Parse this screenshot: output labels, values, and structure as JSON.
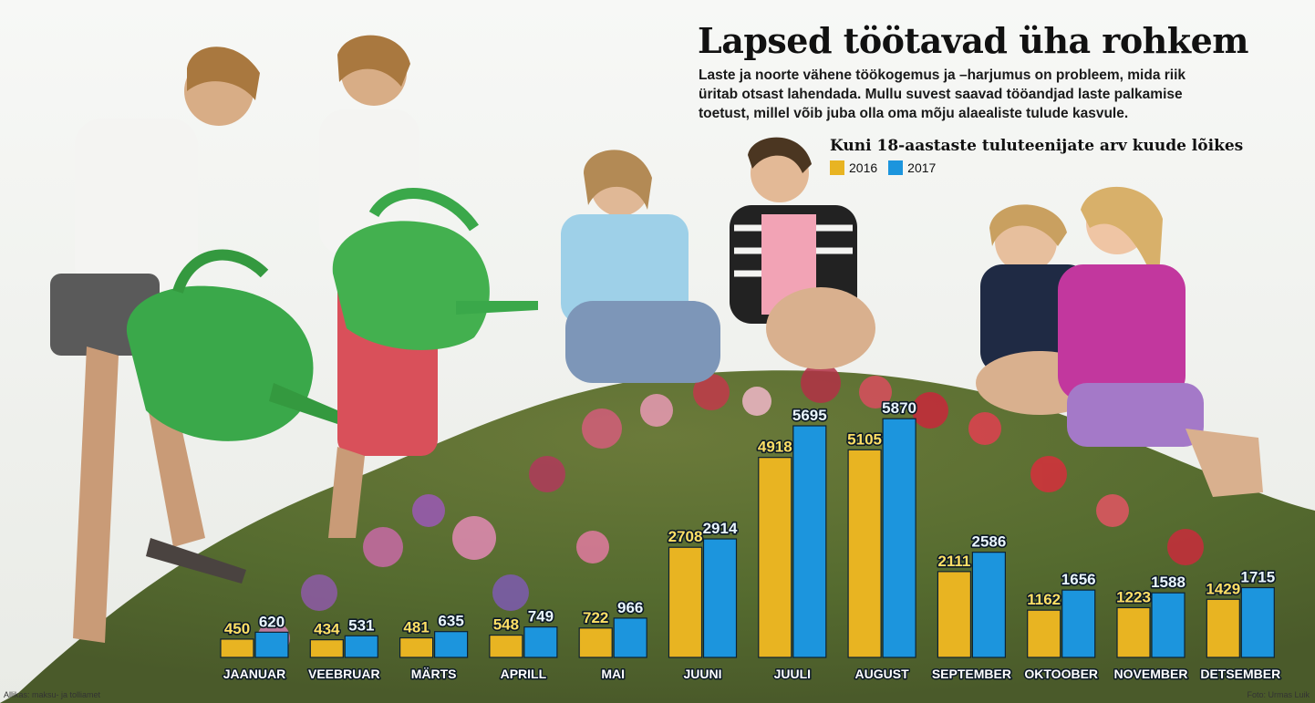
{
  "title": "Lapsed töötavad üha rohkem",
  "intro": "Laste ja noorte vähene töökogemus ja –harjumus on probleem, mida riik üritab otsast lahendada. Mullu suvest saavad tööandjad laste palkamise toetust, millel võib juba olla oma mõju alaealiste tulude kasvule.",
  "source": "Allikas: maksu- ja tolliamet",
  "photo_credit": "Foto: Urmas Luik",
  "colors": {
    "2016": "#e8b422",
    "2017": "#1c95dd"
  },
  "chart_data": {
    "type": "bar",
    "title": "Kuni 18-aastaste tuluteenijate arv  kuude lõikes",
    "legend_placement": "top-left",
    "grid": false,
    "ylim": [
      0,
      6000
    ],
    "categories": [
      "JAANUAR",
      "VEEBRUAR",
      "MÄRTS",
      "APRILL",
      "MAI",
      "JUUNI",
      "JUULI",
      "AUGUST",
      "SEPTEMBER",
      "OKTOOBER",
      "NOVEMBER",
      "DETSEMBER"
    ],
    "series": [
      {
        "name": "2016",
        "values": [
          450,
          434,
          481,
          548,
          722,
          2708,
          4918,
          5105,
          2111,
          1162,
          1223,
          1429
        ]
      },
      {
        "name": "2017",
        "values": [
          620,
          531,
          635,
          749,
          966,
          2914,
          5695,
          5870,
          2586,
          1656,
          1588,
          1715
        ]
      }
    ]
  }
}
